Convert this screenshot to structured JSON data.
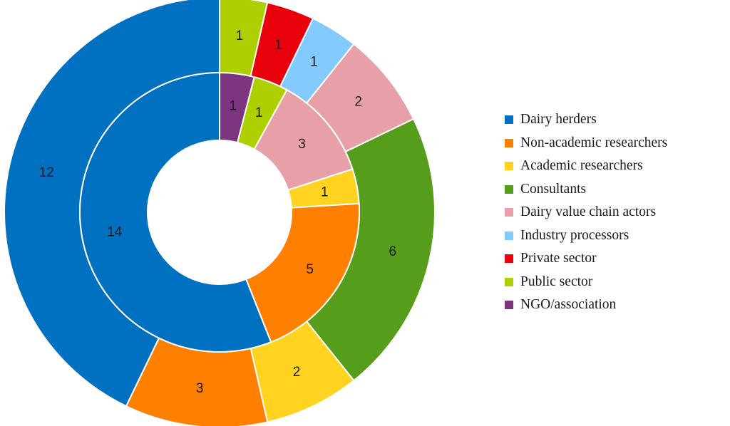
{
  "chart_data": {
    "type": "pie",
    "style": "nested-donut",
    "title": "",
    "legend_position": "right",
    "categories": [
      {
        "name": "Dairy herders",
        "color": "#0070c0"
      },
      {
        "name": "Non-academic researchers",
        "color": "#ff7f00"
      },
      {
        "name": "Academic researchers",
        "color": "#ffd320"
      },
      {
        "name": "Consultants",
        "color": "#579d1c"
      },
      {
        "name": "Dairy value chain actors",
        "color": "#e8a0a8"
      },
      {
        "name": "Industry processors",
        "color": "#83caff"
      },
      {
        "name": "Private sector",
        "color": "#e8000b"
      },
      {
        "name": "Public sector",
        "color": "#aecf00"
      },
      {
        "name": "NGO/association",
        "color": "#7e3580"
      }
    ],
    "series": [
      {
        "ring": "outer",
        "slices": [
          {
            "category": "Public sector",
            "value": 1
          },
          {
            "category": "Private sector",
            "value": 1
          },
          {
            "category": "Industry processors",
            "value": 1
          },
          {
            "category": "Dairy value chain actors",
            "value": 2
          },
          {
            "category": "Consultants",
            "value": 6
          },
          {
            "category": "Academic researchers",
            "value": 2
          },
          {
            "category": "Non-academic researchers",
            "value": 3
          },
          {
            "category": "Dairy herders",
            "value": 12
          }
        ]
      },
      {
        "ring": "inner",
        "slices": [
          {
            "category": "NGO/association",
            "value": 1
          },
          {
            "category": "Public sector",
            "value": 1
          },
          {
            "category": "Dairy value chain actors",
            "value": 3
          },
          {
            "category": "Academic researchers",
            "value": 1
          },
          {
            "category": "Non-academic researchers",
            "value": 5
          },
          {
            "category": "Dairy herders",
            "value": 14
          }
        ]
      }
    ]
  }
}
